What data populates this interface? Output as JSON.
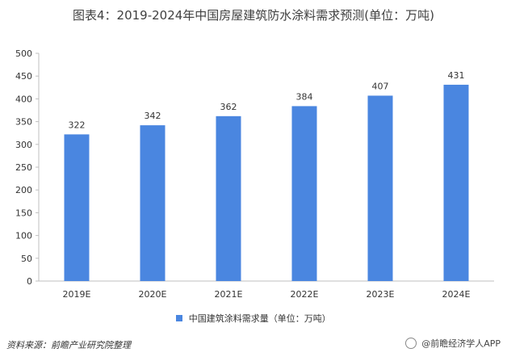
{
  "title": "图表4：2019-2024年中国房屋建筑防水涂料需求预测(单位：万吨)",
  "legend_label": "中国建筑涂料需求量（单位：万吨）",
  "source": "资料来源：前瞻产业研究院整理",
  "brand": "@前瞻经济学人APP",
  "colors": {
    "bar": "#4a86e0"
  },
  "chart_data": {
    "type": "bar",
    "categories": [
      "2019E",
      "2020E",
      "2021E",
      "2022E",
      "2023E",
      "2024E"
    ],
    "series": [
      {
        "name": "中国建筑涂料需求量（单位：万吨）",
        "values": [
          322,
          342,
          362,
          384,
          407,
          431
        ]
      }
    ],
    "title": "图表4：2019-2024年中国房屋建筑防水涂料需求预测(单位：万吨)",
    "xlabel": "",
    "ylabel": "",
    "ylim": [
      0,
      500
    ],
    "yticks": [
      0,
      50,
      100,
      150,
      200,
      250,
      300,
      350,
      400,
      450,
      500
    ],
    "grid": false,
    "legend": "bottom"
  }
}
